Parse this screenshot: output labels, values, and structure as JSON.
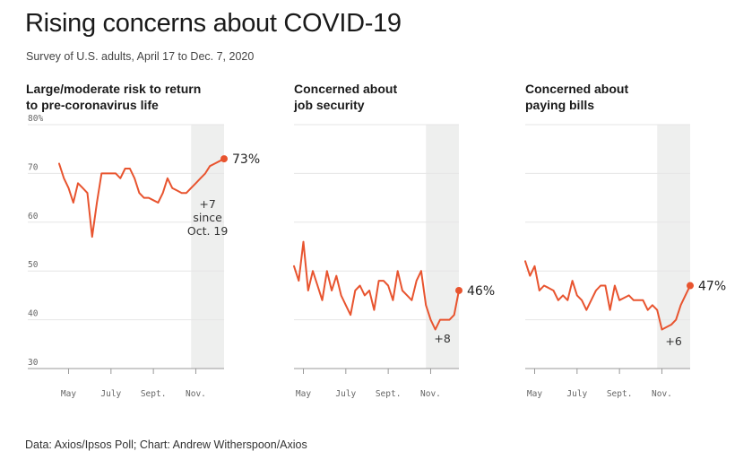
{
  "title": "Rising concerns about COVID-19",
  "subtitle": "Survey of U.S. adults, April 17 to Dec. 7, 2020",
  "source": "Data: Axios/Ipsos Poll; Chart: Andrew Witherspoon/Axios",
  "colors": {
    "line": "#e8542f",
    "shade": "#eeefee",
    "grid": "#e6e6e6",
    "baseline": "#999999"
  },
  "chart_data": [
    {
      "type": "line",
      "title_lines": [
        "Large/moderate risk to return",
        "to pre-coronavirus life"
      ],
      "ylim": [
        30,
        80
      ],
      "yticks": [
        {
          "value": 80,
          "label": "80%"
        },
        {
          "value": 70,
          "label": "70"
        },
        {
          "value": 60,
          "label": "60"
        },
        {
          "value": 50,
          "label": "50"
        },
        {
          "value": 40,
          "label": "40"
        },
        {
          "value": 30,
          "label": "30"
        }
      ],
      "xlim": [
        0,
        35
      ],
      "xticks": [
        {
          "value": 2,
          "label": "May"
        },
        {
          "value": 11,
          "label": "July"
        },
        {
          "value": 20,
          "label": "Sept."
        },
        {
          "value": 29,
          "label": "Nov."
        }
      ],
      "shade_range": [
        28,
        35
      ],
      "x": [
        0,
        1,
        2,
        3,
        4,
        5,
        6,
        7,
        8,
        9,
        10,
        11,
        12,
        13,
        14,
        15,
        16,
        17,
        18,
        19,
        20,
        21,
        22,
        23,
        24,
        25,
        26,
        27,
        28,
        29,
        30,
        31,
        32,
        33,
        34,
        35
      ],
      "values": [
        72,
        69,
        67,
        64,
        68,
        67,
        66,
        57,
        64,
        70,
        70,
        70,
        70,
        69,
        71,
        71,
        69,
        66,
        65,
        65,
        64.5,
        64,
        66,
        69,
        67,
        66.5,
        66,
        66,
        67,
        68,
        69,
        70,
        71.5,
        72,
        72.5,
        73
      ],
      "end_label": "73%",
      "annotation": [
        "+7",
        "since",
        "Oct. 19"
      ]
    },
    {
      "type": "line",
      "title_lines": [
        "Concerned about",
        "job security"
      ],
      "ylim": [
        30,
        80
      ],
      "xlim": [
        0,
        35
      ],
      "xticks": [
        {
          "value": 2,
          "label": "May"
        },
        {
          "value": 11,
          "label": "July"
        },
        {
          "value": 20,
          "label": "Sept."
        },
        {
          "value": 29,
          "label": "Nov."
        }
      ],
      "shade_range": [
        28,
        35
      ],
      "x": [
        0,
        1,
        2,
        3,
        4,
        5,
        6,
        7,
        8,
        9,
        10,
        11,
        12,
        13,
        14,
        15,
        16,
        17,
        18,
        19,
        20,
        21,
        22,
        23,
        24,
        25,
        26,
        27,
        28,
        29,
        30,
        31,
        32,
        33,
        34,
        35
      ],
      "values": [
        51,
        48,
        56,
        46,
        50,
        47,
        44,
        50,
        46,
        49,
        45,
        43,
        41,
        46,
        47,
        45,
        46,
        42,
        48,
        48,
        47,
        44,
        50,
        46,
        45,
        44,
        48,
        50,
        43,
        40,
        38,
        40,
        40,
        40,
        41,
        46
      ],
      "end_label": "46%",
      "annotation": [
        "+8"
      ]
    },
    {
      "type": "line",
      "title_lines": [
        "Concerned about",
        "paying bills"
      ],
      "ylim": [
        30,
        80
      ],
      "xlim": [
        0,
        35
      ],
      "xticks": [
        {
          "value": 2,
          "label": "May"
        },
        {
          "value": 11,
          "label": "July"
        },
        {
          "value": 20,
          "label": "Sept."
        },
        {
          "value": 29,
          "label": "Nov."
        }
      ],
      "shade_range": [
        28,
        35
      ],
      "x": [
        0,
        1,
        2,
        3,
        4,
        5,
        6,
        7,
        8,
        9,
        10,
        11,
        12,
        13,
        14,
        15,
        16,
        17,
        18,
        19,
        20,
        21,
        22,
        23,
        24,
        25,
        26,
        27,
        28,
        29,
        30,
        31,
        32,
        33,
        34,
        35
      ],
      "values": [
        52,
        49,
        51,
        46,
        47,
        46.5,
        46,
        44,
        45,
        44,
        48,
        45,
        44,
        42,
        44,
        46,
        47,
        47,
        42,
        47,
        44,
        44.5,
        45,
        44,
        44,
        44,
        42,
        43,
        42,
        38,
        38.5,
        39,
        40,
        43,
        45,
        47
      ],
      "end_label": "47%",
      "annotation": [
        "+6"
      ]
    }
  ]
}
